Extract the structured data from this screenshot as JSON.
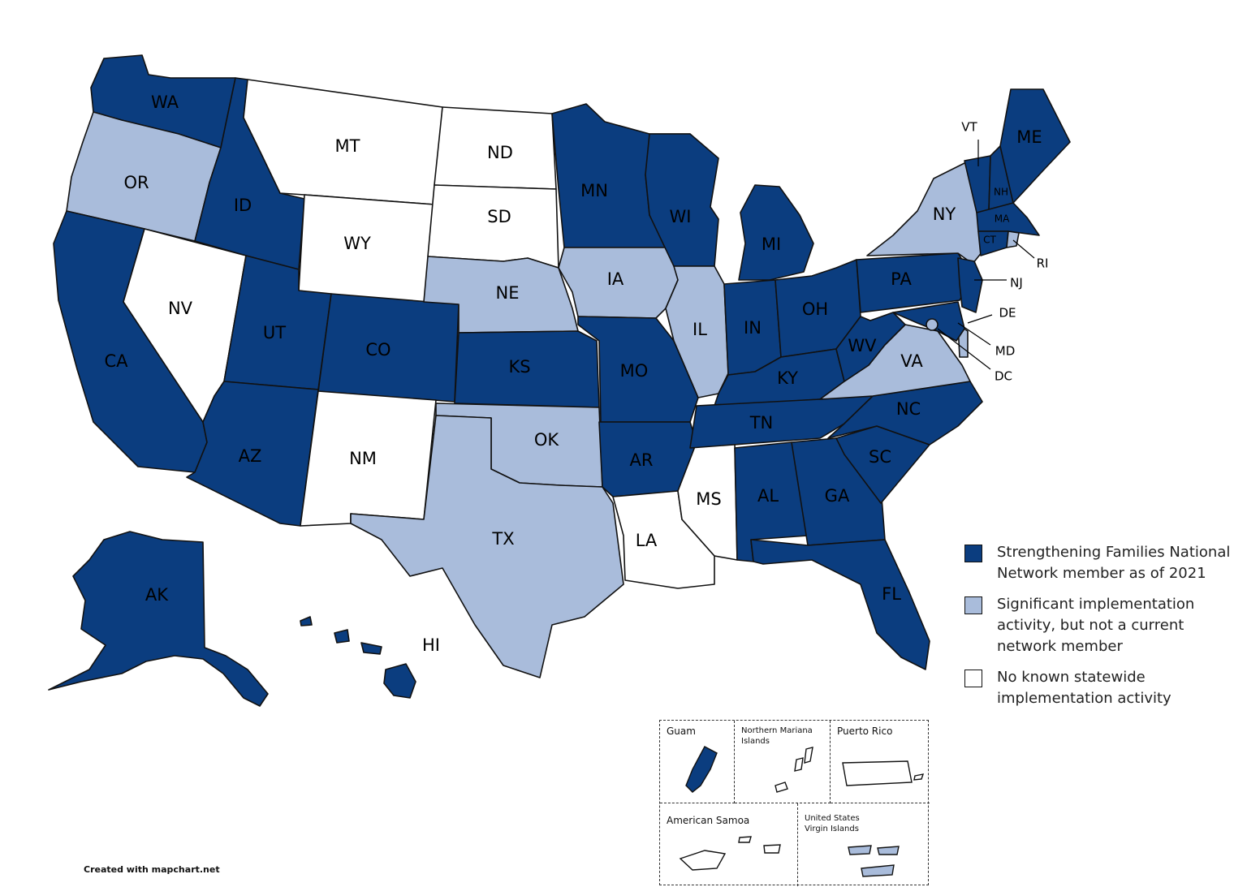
{
  "colors": {
    "member": "#0b3d7f",
    "implementation": "#a9bcdb",
    "none": "#ffffff"
  },
  "legend": [
    {
      "key": "member",
      "text": "Strengthening Families National Network member as of 2021"
    },
    {
      "key": "implementation",
      "text": "Significant implementation activity, but not a current network member"
    },
    {
      "key": "none",
      "text": "No known statewide implementation activity"
    }
  ],
  "states": [
    {
      "abbr": "WA",
      "status": "member"
    },
    {
      "abbr": "OR",
      "status": "implementation"
    },
    {
      "abbr": "CA",
      "status": "member"
    },
    {
      "abbr": "ID",
      "status": "member"
    },
    {
      "abbr": "NV",
      "status": "none"
    },
    {
      "abbr": "MT",
      "status": "none"
    },
    {
      "abbr": "WY",
      "status": "none"
    },
    {
      "abbr": "UT",
      "status": "member"
    },
    {
      "abbr": "AZ",
      "status": "member"
    },
    {
      "abbr": "CO",
      "status": "member"
    },
    {
      "abbr": "NM",
      "status": "none"
    },
    {
      "abbr": "ND",
      "status": "none"
    },
    {
      "abbr": "SD",
      "status": "none"
    },
    {
      "abbr": "NE",
      "status": "implementation"
    },
    {
      "abbr": "KS",
      "status": "member"
    },
    {
      "abbr": "OK",
      "status": "implementation"
    },
    {
      "abbr": "TX",
      "status": "implementation"
    },
    {
      "abbr": "MN",
      "status": "member"
    },
    {
      "abbr": "IA",
      "status": "implementation"
    },
    {
      "abbr": "MO",
      "status": "member"
    },
    {
      "abbr": "AR",
      "status": "member"
    },
    {
      "abbr": "LA",
      "status": "none"
    },
    {
      "abbr": "WI",
      "status": "member"
    },
    {
      "abbr": "IL",
      "status": "implementation"
    },
    {
      "abbr": "MS",
      "status": "none"
    },
    {
      "abbr": "MI",
      "status": "member"
    },
    {
      "abbr": "IN",
      "status": "member"
    },
    {
      "abbr": "OH",
      "status": "member"
    },
    {
      "abbr": "KY",
      "status": "member"
    },
    {
      "abbr": "TN",
      "status": "member"
    },
    {
      "abbr": "AL",
      "status": "member"
    },
    {
      "abbr": "GA",
      "status": "member"
    },
    {
      "abbr": "FL",
      "status": "member"
    },
    {
      "abbr": "SC",
      "status": "member"
    },
    {
      "abbr": "NC",
      "status": "member"
    },
    {
      "abbr": "VA",
      "status": "implementation"
    },
    {
      "abbr": "WV",
      "status": "member"
    },
    {
      "abbr": "PA",
      "status": "member"
    },
    {
      "abbr": "NY",
      "status": "implementation"
    },
    {
      "abbr": "NJ",
      "status": "member"
    },
    {
      "abbr": "DE",
      "status": "implementation"
    },
    {
      "abbr": "MD",
      "status": "member"
    },
    {
      "abbr": "DC",
      "status": "implementation"
    },
    {
      "abbr": "VT",
      "status": "member"
    },
    {
      "abbr": "NH",
      "status": "member"
    },
    {
      "abbr": "ME",
      "status": "member"
    },
    {
      "abbr": "MA",
      "status": "member"
    },
    {
      "abbr": "CT",
      "status": "member"
    },
    {
      "abbr": "RI",
      "status": "implementation"
    },
    {
      "abbr": "AK",
      "status": "member"
    },
    {
      "abbr": "HI",
      "status": "member"
    }
  ],
  "territories": [
    {
      "name": "Guam",
      "status": "member"
    },
    {
      "name": "Northern Mariana Islands",
      "status": "none"
    },
    {
      "name": "Puerto Rico",
      "status": "none"
    },
    {
      "name": "American Samoa",
      "status": "none"
    },
    {
      "name": "United States Virgin Islands",
      "status": "implementation"
    }
  ],
  "credit": "Created with mapchart.net"
}
